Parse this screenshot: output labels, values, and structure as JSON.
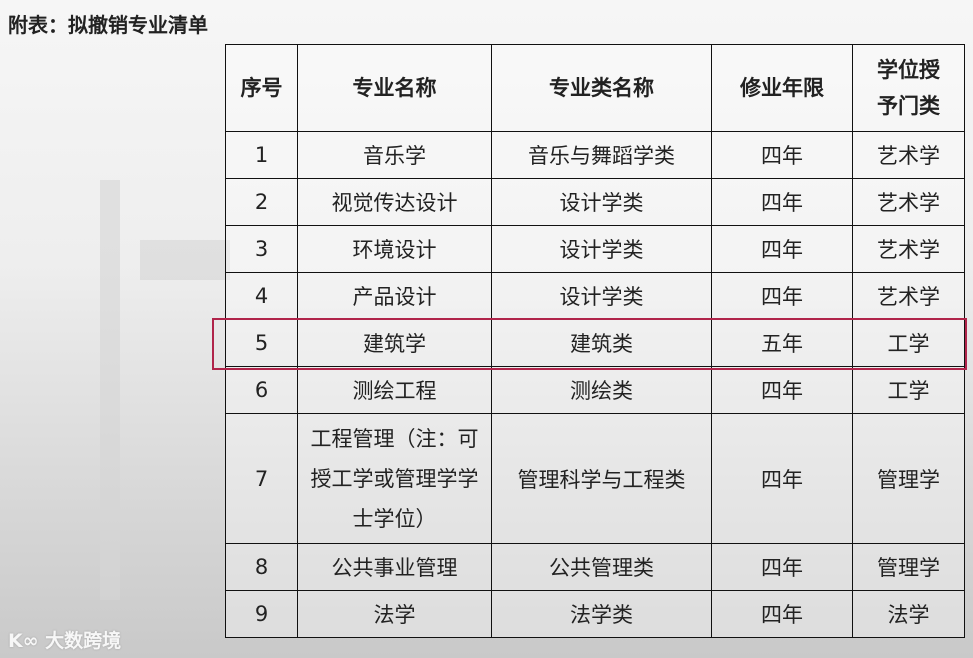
{
  "title": "附表：拟撤销专业清单",
  "table": {
    "headers": [
      "序号",
      "专业名称",
      "专业类名称",
      "修业年限",
      "学位授予门类"
    ],
    "rows": [
      [
        "1",
        "音乐学",
        "音乐与舞蹈学类",
        "四年",
        "艺术学"
      ],
      [
        "2",
        "视觉传达设计",
        "设计学类",
        "四年",
        "艺术学"
      ],
      [
        "3",
        "环境设计",
        "设计学类",
        "四年",
        "艺术学"
      ],
      [
        "4",
        "产品设计",
        "设计学类",
        "四年",
        "艺术学"
      ],
      [
        "5",
        "建筑学",
        "建筑类",
        "五年",
        "工学"
      ],
      [
        "6",
        "测绘工程",
        "测绘类",
        "四年",
        "工学"
      ],
      [
        "7",
        "工程管理（注：可授工学或管理学学士学位）",
        "管理科学与工程类",
        "四年",
        "管理学"
      ],
      [
        "8",
        "公共事业管理",
        "公共管理类",
        "四年",
        "管理学"
      ],
      [
        "9",
        "法学",
        "法学类",
        "四年",
        "法学"
      ]
    ],
    "highlighted_row": "5",
    "highlight_color": "#b0244a"
  },
  "watermark": "大数跨境"
}
